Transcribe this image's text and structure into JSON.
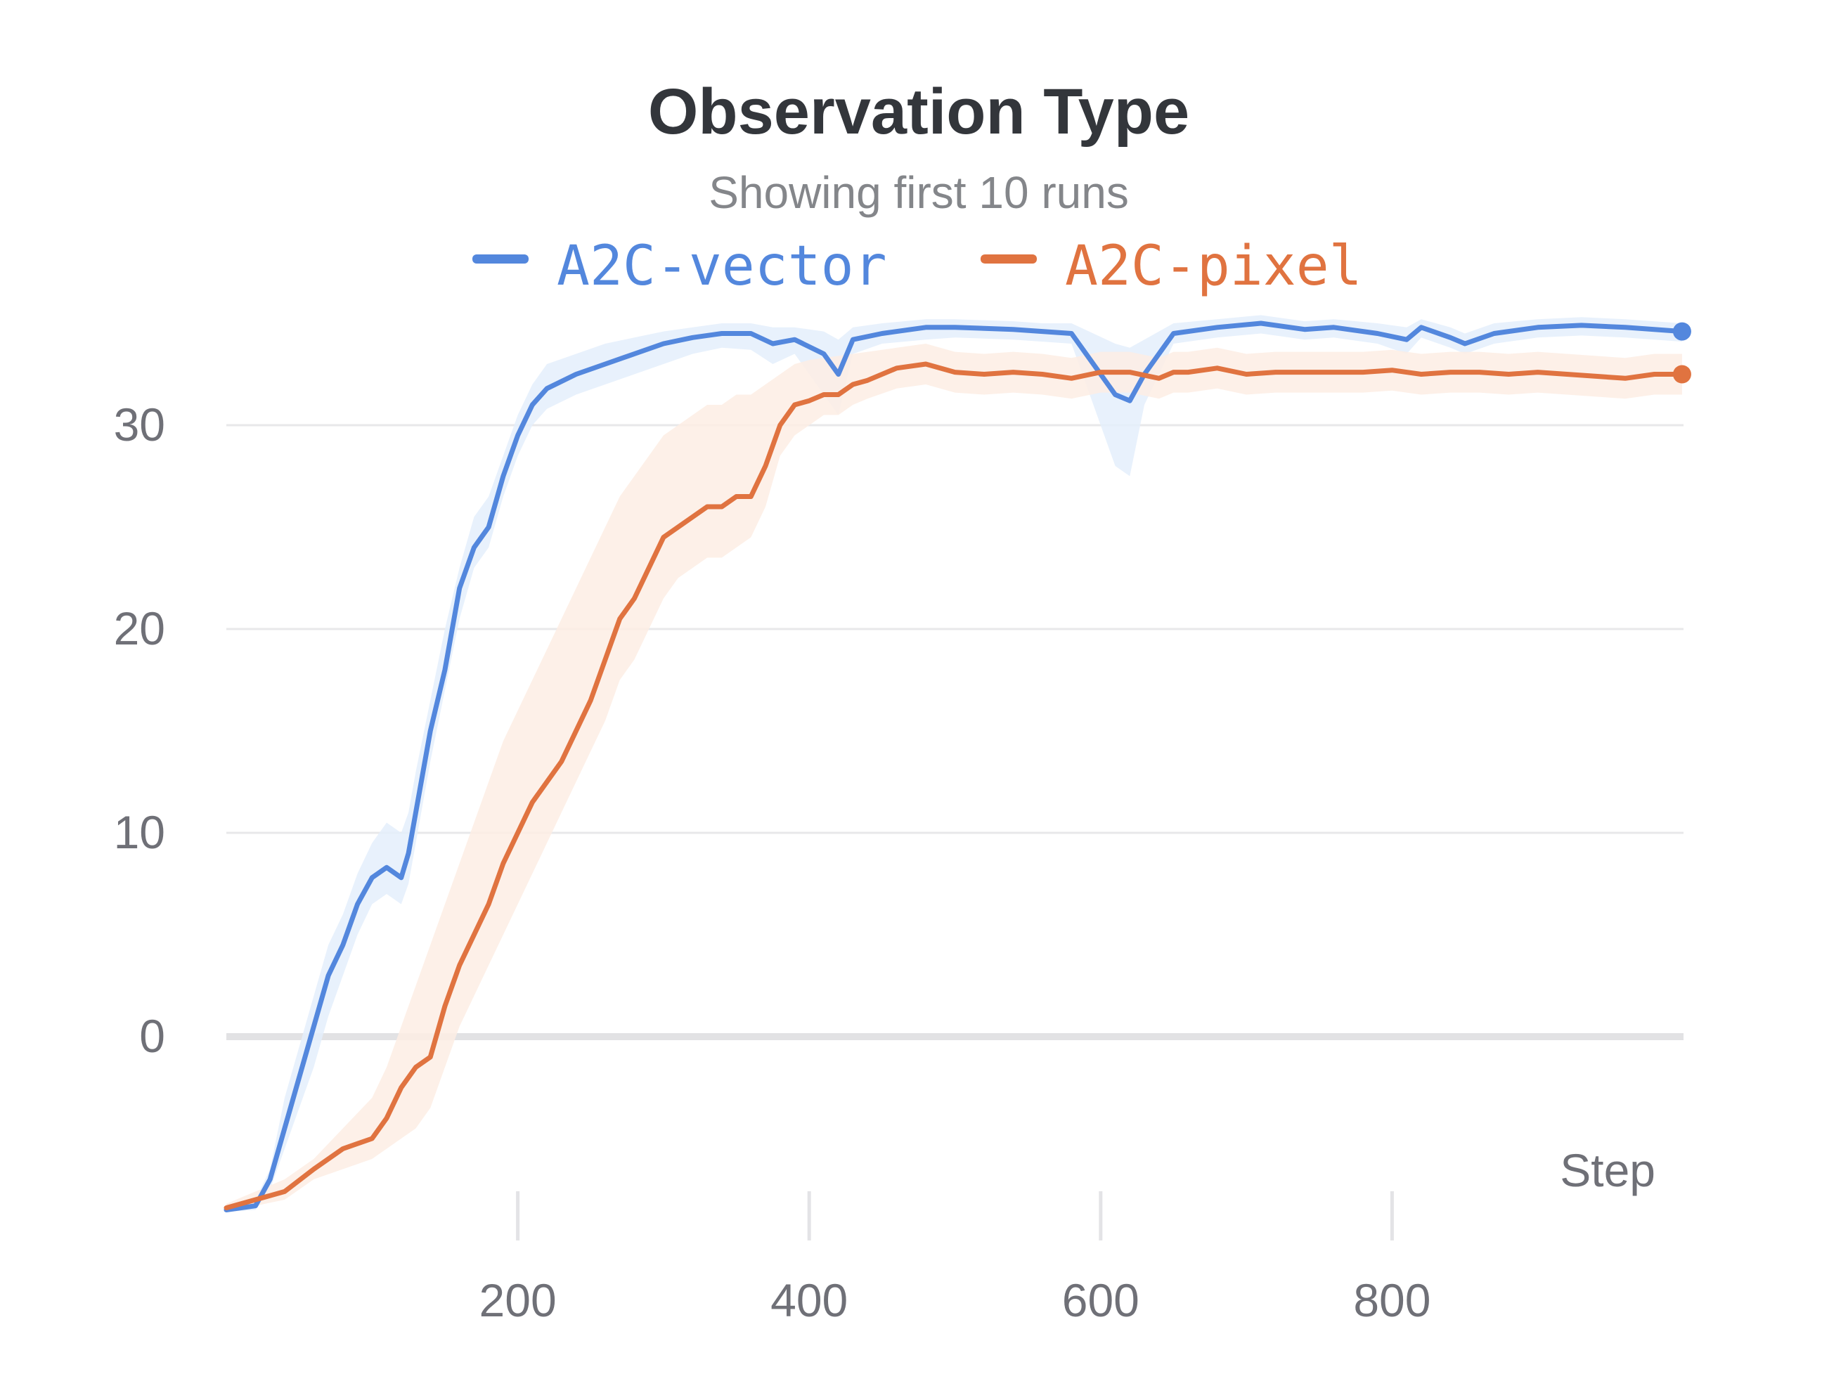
{
  "chart_data": {
    "type": "line",
    "title": "Observation Type",
    "subtitle": "Showing first 10 runs",
    "xlabel": "Step",
    "ylabel": "",
    "xlim": [
      0,
      1000
    ],
    "ylim": [
      -9,
      34
    ],
    "x_ticks": [
      200,
      400,
      600,
      800
    ],
    "x_tick_labels": [
      "200",
      "400",
      "600",
      "800"
    ],
    "y_ticks": [
      0,
      10,
      20,
      30
    ],
    "y_tick_labels": [
      "0",
      "10",
      "20",
      "30"
    ],
    "grid": true,
    "legend_position": "top",
    "series": [
      {
        "name": "A2C-vector",
        "color": "#5387dd",
        "x": [
          0,
          20,
          30,
          40,
          50,
          60,
          70,
          80,
          90,
          100,
          110,
          120,
          125,
          130,
          140,
          150,
          160,
          170,
          180,
          190,
          200,
          210,
          220,
          240,
          260,
          280,
          300,
          320,
          340,
          360,
          375,
          390,
          410,
          420,
          430,
          450,
          480,
          500,
          540,
          560,
          580,
          610,
          620,
          630,
          650,
          680,
          710,
          740,
          760,
          790,
          810,
          820,
          840,
          850,
          870,
          900,
          930,
          960,
          999
        ],
        "values": [
          -8.5,
          -8.3,
          -7.0,
          -4.5,
          -2.0,
          0.5,
          3.0,
          4.5,
          6.5,
          7.8,
          8.3,
          7.8,
          9.0,
          11.0,
          15.0,
          18.0,
          22.0,
          24.0,
          25.0,
          27.5,
          29.5,
          31.0,
          31.8,
          32.5,
          33.0,
          33.5,
          34.0,
          34.3,
          34.5,
          34.5,
          34.0,
          34.2,
          33.5,
          32.5,
          34.2,
          34.5,
          34.8,
          34.8,
          34.7,
          34.6,
          34.5,
          31.5,
          31.2,
          32.5,
          34.5,
          34.8,
          35.0,
          34.7,
          34.8,
          34.5,
          34.2,
          34.8,
          34.3,
          34.0,
          34.5,
          34.8,
          34.9,
          34.8,
          34.6
        ],
        "band_low": [
          -8.6,
          -8.5,
          -7.5,
          -5.5,
          -3.5,
          -1.5,
          1.0,
          3.0,
          5.0,
          6.5,
          7.0,
          6.5,
          7.5,
          9.5,
          13.5,
          17.0,
          20.5,
          23.0,
          24.0,
          26.5,
          28.5,
          30.0,
          30.8,
          31.5,
          32.0,
          32.5,
          33.0,
          33.5,
          33.8,
          33.7,
          33.0,
          33.5,
          31.5,
          30.5,
          33.5,
          34.0,
          34.2,
          34.3,
          34.2,
          34.1,
          34.0,
          28.0,
          27.5,
          31.0,
          34.0,
          34.3,
          34.5,
          34.2,
          34.3,
          34.0,
          33.5,
          34.3,
          33.8,
          33.5,
          34.0,
          34.3,
          34.4,
          34.3,
          34.1
        ],
        "band_high": [
          -8.4,
          -8.0,
          -6.5,
          -3.0,
          -0.5,
          2.0,
          4.5,
          6.0,
          8.0,
          9.5,
          10.5,
          10.0,
          11.0,
          13.0,
          16.5,
          20.0,
          23.0,
          25.5,
          26.5,
          28.5,
          30.5,
          32.0,
          33.0,
          33.5,
          34.0,
          34.3,
          34.6,
          34.8,
          35.0,
          35.0,
          34.8,
          34.8,
          34.6,
          34.2,
          34.8,
          35.0,
          35.2,
          35.2,
          35.1,
          35.0,
          35.0,
          34.0,
          33.8,
          34.2,
          35.0,
          35.2,
          35.4,
          35.1,
          35.2,
          35.0,
          34.8,
          35.2,
          34.8,
          34.5,
          35.0,
          35.2,
          35.3,
          35.2,
          35.0
        ]
      },
      {
        "name": "A2C-pixel",
        "color": "#e07340",
        "x": [
          0,
          20,
          40,
          60,
          80,
          100,
          110,
          120,
          130,
          140,
          150,
          160,
          170,
          180,
          190,
          200,
          210,
          220,
          230,
          240,
          250,
          260,
          270,
          280,
          290,
          300,
          310,
          320,
          330,
          340,
          350,
          360,
          370,
          380,
          390,
          400,
          410,
          420,
          430,
          440,
          460,
          480,
          500,
          520,
          540,
          560,
          580,
          600,
          620,
          640,
          650,
          660,
          680,
          700,
          720,
          740,
          760,
          780,
          800,
          820,
          840,
          860,
          880,
          900,
          920,
          940,
          960,
          980,
          999
        ],
        "values": [
          -8.4,
          -8.0,
          -7.6,
          -6.5,
          -5.5,
          -5.0,
          -4.0,
          -2.5,
          -1.5,
          -1.0,
          1.5,
          3.5,
          5.0,
          6.5,
          8.5,
          10.0,
          11.5,
          12.5,
          13.5,
          15.0,
          16.5,
          18.5,
          20.5,
          21.5,
          23.0,
          24.5,
          25.0,
          25.5,
          26.0,
          26.0,
          26.5,
          26.5,
          28.0,
          30.0,
          31.0,
          31.2,
          31.5,
          31.5,
          32.0,
          32.2,
          32.8,
          33.0,
          32.6,
          32.5,
          32.6,
          32.5,
          32.3,
          32.6,
          32.6,
          32.3,
          32.6,
          32.6,
          32.8,
          32.5,
          32.6,
          32.6,
          32.6,
          32.6,
          32.7,
          32.5,
          32.6,
          32.6,
          32.5,
          32.6,
          32.5,
          32.4,
          32.3,
          32.5,
          32.5
        ],
        "band_low": [
          -8.5,
          -8.3,
          -8.0,
          -7.0,
          -6.5,
          -6.0,
          -5.5,
          -5.0,
          -4.5,
          -3.5,
          -1.5,
          0.5,
          2.0,
          3.5,
          5.0,
          6.5,
          8.0,
          9.5,
          11.0,
          12.5,
          14.0,
          15.5,
          17.5,
          18.5,
          20.0,
          21.5,
          22.5,
          23.0,
          23.5,
          23.5,
          24.0,
          24.5,
          26.0,
          28.5,
          29.5,
          30.0,
          30.5,
          30.5,
          31.0,
          31.3,
          31.8,
          32.0,
          31.6,
          31.5,
          31.6,
          31.5,
          31.3,
          31.6,
          31.6,
          31.3,
          31.6,
          31.6,
          31.8,
          31.5,
          31.6,
          31.6,
          31.6,
          31.6,
          31.7,
          31.5,
          31.6,
          31.6,
          31.5,
          31.6,
          31.5,
          31.4,
          31.3,
          31.5,
          31.5
        ],
        "band_high": [
          -8.2,
          -7.6,
          -7.0,
          -6.0,
          -4.5,
          -3.0,
          -1.5,
          0.5,
          2.5,
          4.5,
          6.5,
          8.5,
          10.5,
          12.5,
          14.5,
          16.0,
          17.5,
          19.0,
          20.5,
          22.0,
          23.5,
          25.0,
          26.5,
          27.5,
          28.5,
          29.5,
          30.0,
          30.5,
          31.0,
          31.0,
          31.5,
          31.5,
          32.0,
          32.5,
          33.0,
          33.2,
          33.3,
          33.4,
          33.5,
          33.6,
          33.8,
          34.0,
          33.6,
          33.5,
          33.6,
          33.5,
          33.3,
          33.6,
          33.6,
          33.3,
          33.6,
          33.6,
          33.8,
          33.5,
          33.6,
          33.6,
          33.6,
          33.6,
          33.7,
          33.5,
          33.6,
          33.6,
          33.5,
          33.6,
          33.5,
          33.4,
          33.3,
          33.5,
          33.5
        ]
      }
    ]
  }
}
